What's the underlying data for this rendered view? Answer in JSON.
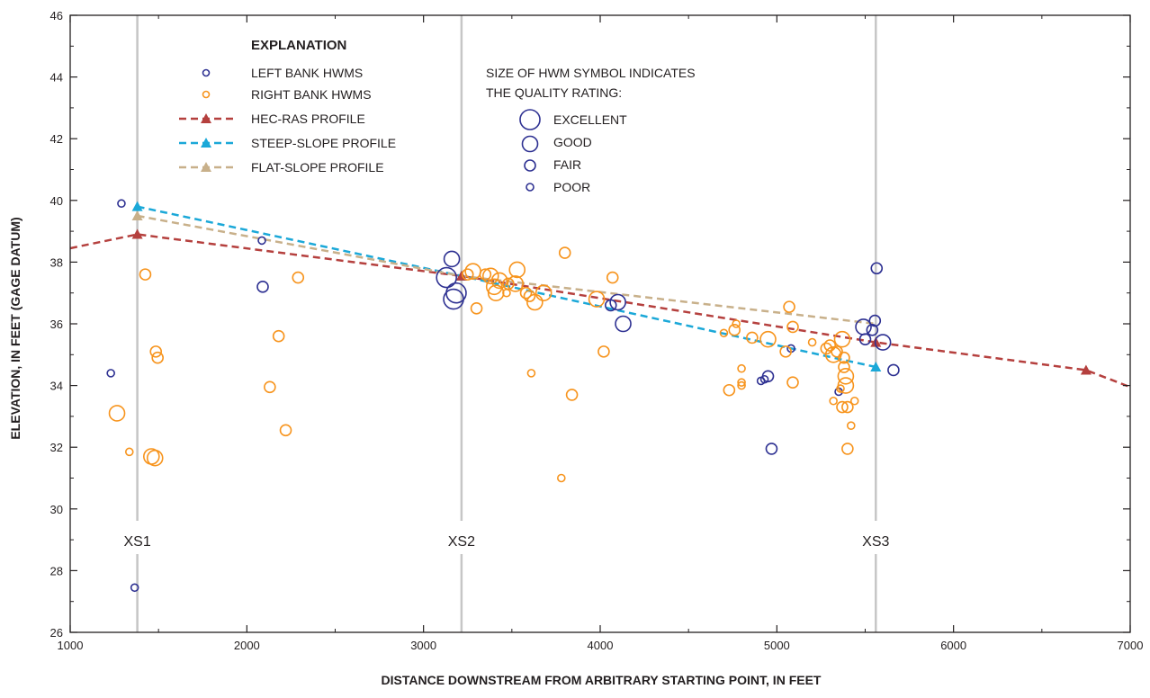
{
  "chart_data": {
    "type": "scatter",
    "title": "",
    "xlabel": "DISTANCE DOWNSTREAM FROM ARBITRARY STARTING POINT, IN FEET",
    "ylabel": "ELEVATION, IN FEET (GAGE DATUM)",
    "xlim": [
      1000,
      7000
    ],
    "ylim": [
      26,
      46
    ],
    "xticks": [
      1000,
      2000,
      3000,
      4000,
      5000,
      6000,
      7000
    ],
    "yticks": [
      26,
      28,
      30,
      32,
      34,
      36,
      38,
      40,
      42,
      44,
      46
    ],
    "grid": false,
    "legend_placement": "top-left",
    "colors": {
      "left_bank": "#2e3192",
      "right_bank": "#f7941d",
      "hec_ras": "#b5403e",
      "steep": "#1ba8d8",
      "flat": "#c8b08a",
      "cross_section": "#c6c6c6",
      "axis": "#231f20"
    },
    "cross_sections": [
      {
        "label": "XS1",
        "x": 1380
      },
      {
        "label": "XS2",
        "x": 3215
      },
      {
        "label": "XS3",
        "x": 5560
      }
    ],
    "profiles": [
      {
        "name": "HEC-RAS PROFILE",
        "color_key": "hec_ras",
        "x": [
          1000,
          1380,
          3215,
          5560,
          6750,
          7000
        ],
        "y": [
          38.45,
          38.9,
          37.55,
          35.4,
          34.5,
          33.95
        ],
        "markers": [
          1,
          2,
          3,
          4
        ]
      },
      {
        "name": "STEEP-SLOPE PROFILE",
        "color_key": "steep",
        "x": [
          1380,
          3215,
          5560
        ],
        "y": [
          39.8,
          37.55,
          34.6
        ],
        "markers": [
          0,
          1,
          2
        ]
      },
      {
        "name": "FLAT-SLOPE PROFILE",
        "color_key": "flat",
        "x": [
          1380,
          3215,
          5560
        ],
        "y": [
          39.5,
          37.55,
          36.0
        ],
        "markers": [
          0
        ]
      }
    ],
    "series": [
      {
        "name": "LEFT BANK HWMS",
        "color_key": "left_bank",
        "points": [
          {
            "x": 1230,
            "y": 34.4,
            "q": "poor"
          },
          {
            "x": 1290,
            "y": 39.9,
            "q": "poor"
          },
          {
            "x": 1365,
            "y": 27.45,
            "q": "poor"
          },
          {
            "x": 2085,
            "y": 38.7,
            "q": "poor"
          },
          {
            "x": 2090,
            "y": 37.2,
            "q": "fair"
          },
          {
            "x": 3130,
            "y": 37.5,
            "q": "excellent"
          },
          {
            "x": 3160,
            "y": 38.1,
            "q": "good"
          },
          {
            "x": 3170,
            "y": 36.8,
            "q": "excellent"
          },
          {
            "x": 3185,
            "y": 37.0,
            "q": "excellent"
          },
          {
            "x": 4060,
            "y": 36.6,
            "q": "fair"
          },
          {
            "x": 4100,
            "y": 36.7,
            "q": "good"
          },
          {
            "x": 4130,
            "y": 36.0,
            "q": "good"
          },
          {
            "x": 4910,
            "y": 34.15,
            "q": "poor"
          },
          {
            "x": 4930,
            "y": 34.2,
            "q": "poor"
          },
          {
            "x": 4950,
            "y": 34.3,
            "q": "fair"
          },
          {
            "x": 4970,
            "y": 31.95,
            "q": "fair"
          },
          {
            "x": 5080,
            "y": 35.2,
            "q": "poor"
          },
          {
            "x": 5350,
            "y": 33.8,
            "q": "poor"
          },
          {
            "x": 5490,
            "y": 35.9,
            "q": "good"
          },
          {
            "x": 5500,
            "y": 35.5,
            "q": "fair"
          },
          {
            "x": 5540,
            "y": 35.8,
            "q": "fair"
          },
          {
            "x": 5555,
            "y": 36.1,
            "q": "fair"
          },
          {
            "x": 5565,
            "y": 37.8,
            "q": "fair"
          },
          {
            "x": 5600,
            "y": 35.4,
            "q": "good"
          },
          {
            "x": 5660,
            "y": 34.5,
            "q": "fair"
          }
        ]
      },
      {
        "name": "RIGHT BANK HWMS",
        "color_key": "right_bank",
        "points": [
          {
            "x": 1265,
            "y": 33.1,
            "q": "good"
          },
          {
            "x": 1335,
            "y": 31.85,
            "q": "poor"
          },
          {
            "x": 1425,
            "y": 37.6,
            "q": "fair"
          },
          {
            "x": 1460,
            "y": 31.7,
            "q": "good"
          },
          {
            "x": 1480,
            "y": 31.65,
            "q": "good"
          },
          {
            "x": 1485,
            "y": 35.1,
            "q": "fair"
          },
          {
            "x": 1495,
            "y": 34.9,
            "q": "fair"
          },
          {
            "x": 2130,
            "y": 33.95,
            "q": "fair"
          },
          {
            "x": 2180,
            "y": 35.6,
            "q": "fair"
          },
          {
            "x": 2220,
            "y": 32.55,
            "q": "fair"
          },
          {
            "x": 2290,
            "y": 37.5,
            "q": "fair"
          },
          {
            "x": 3250,
            "y": 37.6,
            "q": "fair"
          },
          {
            "x": 3280,
            "y": 37.7,
            "q": "good"
          },
          {
            "x": 3300,
            "y": 36.5,
            "q": "fair"
          },
          {
            "x": 3350,
            "y": 37.6,
            "q": "fair"
          },
          {
            "x": 3380,
            "y": 37.55,
            "q": "good"
          },
          {
            "x": 3400,
            "y": 37.2,
            "q": "good"
          },
          {
            "x": 3410,
            "y": 37.0,
            "q": "good"
          },
          {
            "x": 3430,
            "y": 37.4,
            "q": "good"
          },
          {
            "x": 3470,
            "y": 37.0,
            "q": "poor"
          },
          {
            "x": 3480,
            "y": 37.3,
            "q": "fair"
          },
          {
            "x": 3520,
            "y": 37.3,
            "q": "good"
          },
          {
            "x": 3530,
            "y": 37.75,
            "q": "good"
          },
          {
            "x": 3580,
            "y": 37.0,
            "q": "fair"
          },
          {
            "x": 3600,
            "y": 36.9,
            "q": "fair"
          },
          {
            "x": 3610,
            "y": 34.4,
            "q": "poor"
          },
          {
            "x": 3630,
            "y": 36.7,
            "q": "good"
          },
          {
            "x": 3680,
            "y": 37.0,
            "q": "good"
          },
          {
            "x": 3780,
            "y": 31.0,
            "q": "poor"
          },
          {
            "x": 3800,
            "y": 38.3,
            "q": "fair"
          },
          {
            "x": 3840,
            "y": 33.7,
            "q": "fair"
          },
          {
            "x": 3980,
            "y": 36.8,
            "q": "good"
          },
          {
            "x": 4020,
            "y": 35.1,
            "q": "fair"
          },
          {
            "x": 4070,
            "y": 37.5,
            "q": "fair"
          },
          {
            "x": 4700,
            "y": 35.7,
            "q": "poor"
          },
          {
            "x": 4730,
            "y": 33.85,
            "q": "fair"
          },
          {
            "x": 4760,
            "y": 35.8,
            "q": "fair"
          },
          {
            "x": 4770,
            "y": 36.0,
            "q": "poor"
          },
          {
            "x": 4800,
            "y": 34.55,
            "q": "poor"
          },
          {
            "x": 4800,
            "y": 34.1,
            "q": "poor"
          },
          {
            "x": 4800,
            "y": 34.0,
            "q": "poor"
          },
          {
            "x": 4860,
            "y": 35.55,
            "q": "fair"
          },
          {
            "x": 4950,
            "y": 35.5,
            "q": "good"
          },
          {
            "x": 5050,
            "y": 35.1,
            "q": "fair"
          },
          {
            "x": 5070,
            "y": 36.55,
            "q": "fair"
          },
          {
            "x": 5090,
            "y": 35.9,
            "q": "fair"
          },
          {
            "x": 5090,
            "y": 34.1,
            "q": "fair"
          },
          {
            "x": 5200,
            "y": 35.4,
            "q": "poor"
          },
          {
            "x": 5280,
            "y": 35.2,
            "q": "fair"
          },
          {
            "x": 5300,
            "y": 35.3,
            "q": "fair"
          },
          {
            "x": 5320,
            "y": 33.5,
            "q": "poor"
          },
          {
            "x": 5320,
            "y": 35.0,
            "q": "good"
          },
          {
            "x": 5340,
            "y": 35.1,
            "q": "fair"
          },
          {
            "x": 5360,
            "y": 33.9,
            "q": "poor"
          },
          {
            "x": 5370,
            "y": 35.5,
            "q": "good"
          },
          {
            "x": 5370,
            "y": 33.3,
            "q": "fair"
          },
          {
            "x": 5380,
            "y": 34.9,
            "q": "fair"
          },
          {
            "x": 5380,
            "y": 34.6,
            "q": "fair"
          },
          {
            "x": 5390,
            "y": 34.3,
            "q": "good"
          },
          {
            "x": 5390,
            "y": 34.0,
            "q": "good"
          },
          {
            "x": 5400,
            "y": 33.3,
            "q": "fair"
          },
          {
            "x": 5400,
            "y": 31.95,
            "q": "fair"
          },
          {
            "x": 5420,
            "y": 32.7,
            "q": "poor"
          },
          {
            "x": 5440,
            "y": 33.5,
            "q": "poor"
          }
        ]
      }
    ]
  },
  "legend": {
    "heading": "EXPLANATION",
    "left_bank": "LEFT BANK HWMS",
    "right_bank": "RIGHT BANK HWMS",
    "hec_ras": "HEC-RAS PROFILE",
    "steep": "STEEP-SLOPE PROFILE",
    "flat": "FLAT-SLOPE PROFILE",
    "size_note_line1": "SIZE OF HWM SYMBOL INDICATES",
    "size_note_line2": "THE QUALITY RATING:",
    "quality": {
      "excellent": "EXCELLENT",
      "good": "GOOD",
      "fair": "FAIR",
      "poor": "POOR"
    }
  }
}
